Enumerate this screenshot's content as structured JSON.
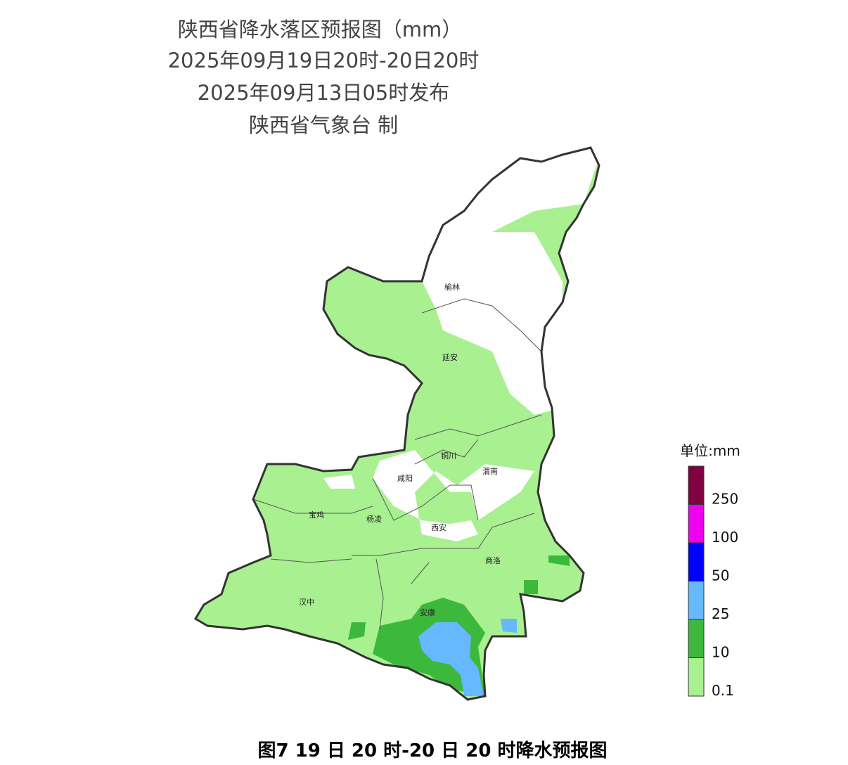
{
  "header": {
    "title": "陕西省降水落区预报图（mm）",
    "period": "2025年09月19日20时-20日20时",
    "issued": "2025年09月13日05时发布",
    "issuer": "陕西省气象台 制"
  },
  "cities": [
    {
      "label": "榆林"
    },
    {
      "label": "延安"
    },
    {
      "label": "铜川"
    },
    {
      "label": "渭南"
    },
    {
      "label": "咸阳"
    },
    {
      "label": "宝鸡"
    },
    {
      "label": "杨凌"
    },
    {
      "label": "西安"
    },
    {
      "label": "商洛"
    },
    {
      "label": "汉中"
    },
    {
      "label": "安康"
    }
  ],
  "legend": {
    "unit": "单位:mm",
    "bins": [
      {
        "label": "0.1",
        "color": "#a8f090"
      },
      {
        "label": "10",
        "color": "#3cb93c"
      },
      {
        "label": "25",
        "color": "#66b8ff"
      },
      {
        "label": "50",
        "color": "#0000ff"
      },
      {
        "label": "100",
        "color": "#ee00ee"
      },
      {
        "label": "250",
        "color": "#800040"
      }
    ]
  },
  "caption": "图7   19 日 20 时-20 日 20 时降水预报图"
}
